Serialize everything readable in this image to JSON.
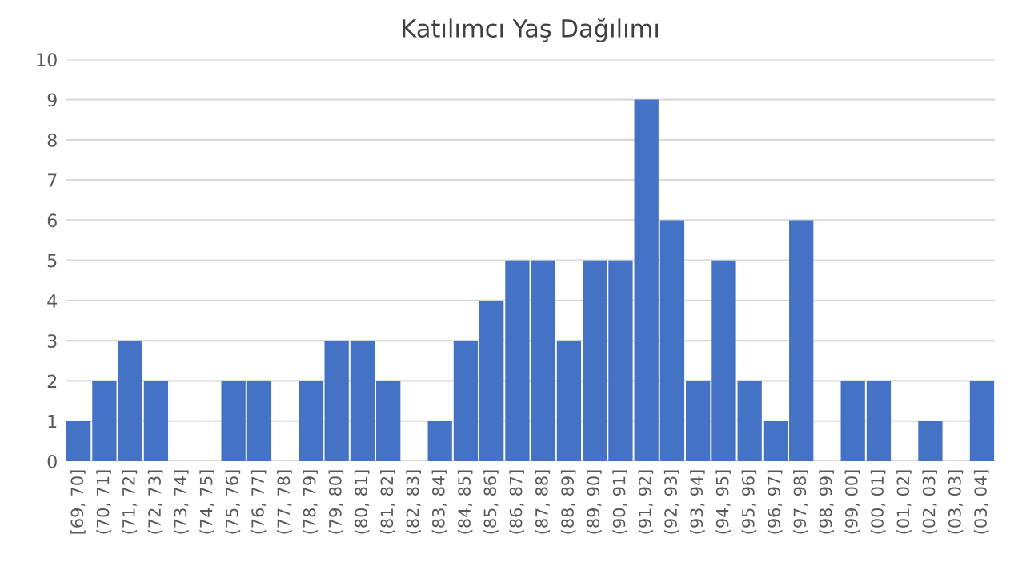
{
  "chart_data": {
    "type": "bar",
    "title": "Katılımcı Yaş Dağılımı",
    "categories": [
      "[69, 70]",
      "(70, 71]",
      "(71, 72]",
      "(72, 73]",
      "(73, 74]",
      "(74, 75]",
      "(75, 76]",
      "(76, 77]",
      "(77, 78]",
      "(78, 79]",
      "(79, 80]",
      "(80, 81]",
      "(81, 82]",
      "(82, 83]",
      "(83, 84]",
      "(84, 85]",
      "(85, 86]",
      "(86, 87]",
      "(87, 88]",
      "(88, 89]",
      "(89, 90]",
      "(90, 91]",
      "(91, 92]",
      "(92, 93]",
      "(93, 94]",
      "(94, 95]",
      "(95, 96]",
      "(96, 97]",
      "(97, 98]",
      "(98, 99]",
      "(99, 00]",
      "(00, 01]",
      "(01, 02]",
      "(02, 03]",
      "(03, 03]",
      "(03, 04]"
    ],
    "values": [
      1,
      2,
      3,
      2,
      0,
      0,
      2,
      2,
      0,
      2,
      3,
      3,
      2,
      0,
      1,
      3,
      4,
      5,
      5,
      3,
      5,
      5,
      9,
      6,
      2,
      5,
      2,
      1,
      6,
      0,
      2,
      2,
      0,
      1,
      0,
      2
    ],
    "color": "#4472c4",
    "ylim": [
      0,
      10
    ],
    "yticks": [
      0,
      1,
      2,
      3,
      4,
      5,
      6,
      7,
      8,
      9,
      10
    ],
    "grid": "y"
  }
}
